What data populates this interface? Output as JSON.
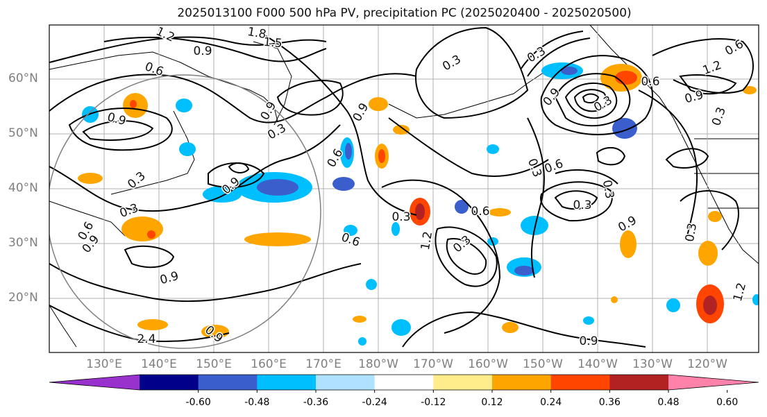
{
  "title": "2025013100 F000 500 hPa PV, precipitation PC (2025020400 - 2025020500)",
  "lat_labels": [
    "60°N",
    "50°N",
    "40°N",
    "30°N",
    "20°N"
  ],
  "lon_labels": [
    "130°E",
    "140°E",
    "150°E",
    "160°E",
    "170°E",
    "180°W",
    "170°W",
    "160°W",
    "150°W",
    "140°W",
    "130°W",
    "120°W"
  ],
  "contour_labels": [
    "1.2",
    "1.8",
    "1.5",
    "0.9",
    "0.6",
    "0.3",
    "0.3",
    "0.9",
    "1.2",
    "0.6",
    "0.9",
    "0.3",
    "0.9",
    "0.3",
    "0.9",
    "0.3",
    "0.6",
    "0.9",
    "0.3",
    "0.6",
    "0.9",
    "0.9",
    "0.3",
    "0.6",
    "0.6",
    "1.2",
    "0.3",
    "0.3",
    "0.9",
    "0.3",
    "0.3",
    "0.3",
    "0.3",
    "0.9",
    "0.6",
    "2.4",
    "0.9",
    "0.9",
    "1.2",
    "0.6"
  ],
  "colorbar": {
    "ticks": [
      "-0.60",
      "-0.48",
      "-0.36",
      "-0.24",
      "-0.12",
      "0.12",
      "0.24",
      "0.36",
      "0.48",
      "0.60"
    ],
    "colors": [
      "#9932cc",
      "#00008b",
      "#3a5fcd",
      "#00bfff",
      "#b0e2ff",
      "#ffffff",
      "#ffec8b",
      "#ffa500",
      "#ff4500",
      "#b22222",
      "#ff82ab"
    ]
  }
}
